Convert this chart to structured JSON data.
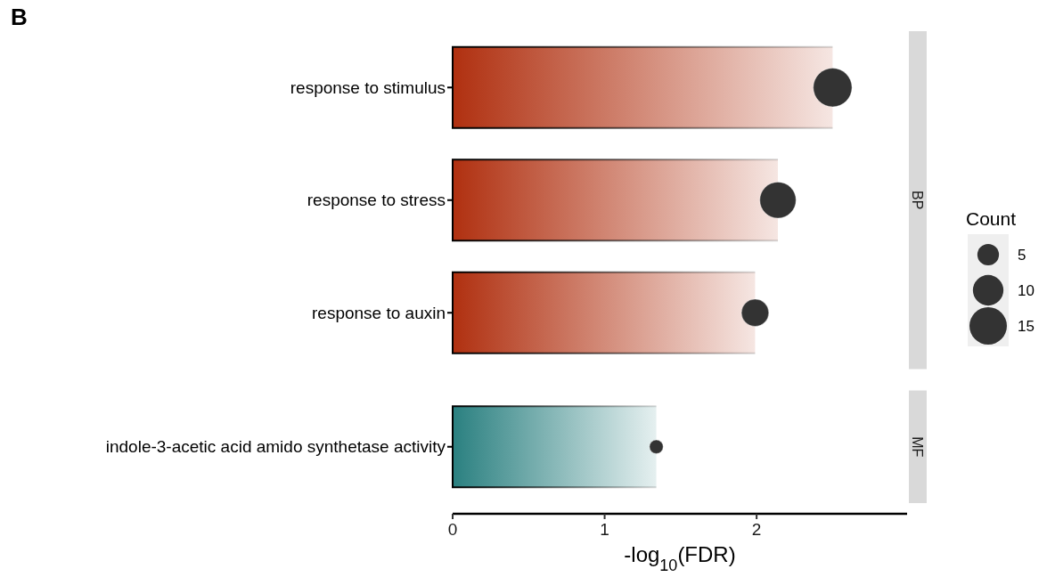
{
  "chart_data": {
    "type": "bar",
    "orientation": "horizontal",
    "categories": [
      "response to stimulus",
      "response to stress",
      "response to auxin",
      "indole-3-acetic acid amido synthetase activity"
    ],
    "series": [
      {
        "colors": [
          "#b03010",
          "#b03010",
          "#b03010",
          "#2a8080"
        ],
        "values": [
          2.5,
          2.14,
          1.99,
          1.34
        ]
      },
      {
        "type": "bubble",
        "color": "#333333",
        "values": [
          2.5,
          2.14,
          1.99,
          1.34
        ],
        "sizes": [
          16,
          14,
          8,
          2
        ]
      }
    ],
    "xlim": [
      0,
      2.99
    ],
    "xticks": [
      0,
      1,
      2
    ],
    "xlabel": "-log$_{10}$(FDR)",
    "legend_title": "Count",
    "size_legend": [
      5,
      10,
      15
    ],
    "grid": false,
    "annotations": [
      "B",
      "BP",
      "MF"
    ]
  }
}
